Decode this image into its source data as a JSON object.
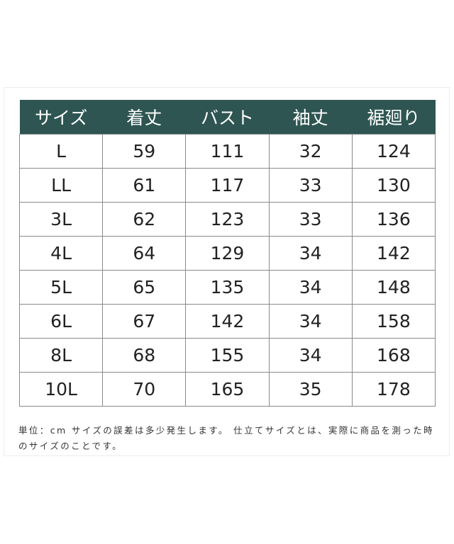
{
  "table": {
    "headers": [
      "サイズ",
      "着丈",
      "バスト",
      "袖丈",
      "裾廻り"
    ],
    "rows": [
      [
        "L",
        "59",
        "111",
        "32",
        "124"
      ],
      [
        "LL",
        "61",
        "117",
        "33",
        "130"
      ],
      [
        "3L",
        "62",
        "123",
        "33",
        "136"
      ],
      [
        "4L",
        "64",
        "129",
        "34",
        "142"
      ],
      [
        "5L",
        "65",
        "135",
        "34",
        "148"
      ],
      [
        "6L",
        "67",
        "142",
        "34",
        "158"
      ],
      [
        "8L",
        "68",
        "155",
        "34",
        "168"
      ],
      [
        "10L",
        "70",
        "165",
        "35",
        "178"
      ]
    ],
    "header_color": "#2e5551"
  },
  "note": "単位：cm サイズの誤差は多少発生します。 仕立てサイズとは、実際に商品を測った時のサイズのことです。"
}
